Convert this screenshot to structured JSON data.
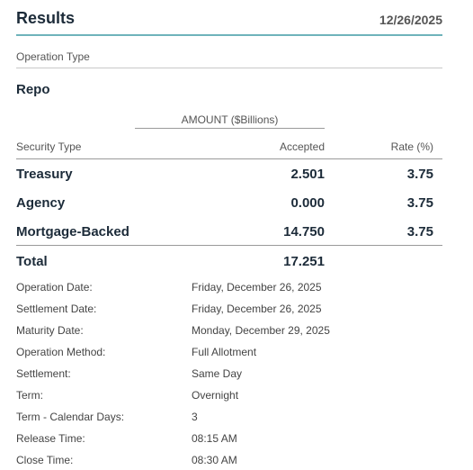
{
  "header": {
    "title": "Results",
    "date": "12/26/2025"
  },
  "operation_type": {
    "label": "Operation Type",
    "value": "Repo"
  },
  "table": {
    "amount_header": "AMOUNT ($Billions)",
    "columns": {
      "security_type": "Security Type",
      "accepted": "Accepted",
      "rate": "Rate (%)"
    },
    "rows": [
      {
        "security": "Treasury",
        "accepted": "2.501",
        "rate": "3.75"
      },
      {
        "security": "Agency",
        "accepted": "0.000",
        "rate": "3.75"
      },
      {
        "security": "Mortgage-Backed",
        "accepted": "14.750",
        "rate": "3.75"
      }
    ],
    "total": {
      "label": "Total",
      "accepted": "17.251"
    }
  },
  "details": [
    {
      "label": "Operation Date:",
      "value": "Friday, December 26, 2025"
    },
    {
      "label": "Settlement Date:",
      "value": "Friday, December 26, 2025"
    },
    {
      "label": "Maturity Date:",
      "value": "Monday, December 29, 2025"
    },
    {
      "label": "Operation Method:",
      "value": "Full Allotment"
    },
    {
      "label": "Settlement:",
      "value": "Same Day"
    },
    {
      "label": "Term:",
      "value": "Overnight"
    },
    {
      "label": "Term - Calendar Days:",
      "value": "3"
    },
    {
      "label": "Release Time:",
      "value": "08:15 AM"
    },
    {
      "label": "Close Time:",
      "value": "08:30 AM"
    }
  ],
  "colors": {
    "accent": "#6fb3bb",
    "heading": "#1c2b39",
    "muted": "#555555"
  }
}
